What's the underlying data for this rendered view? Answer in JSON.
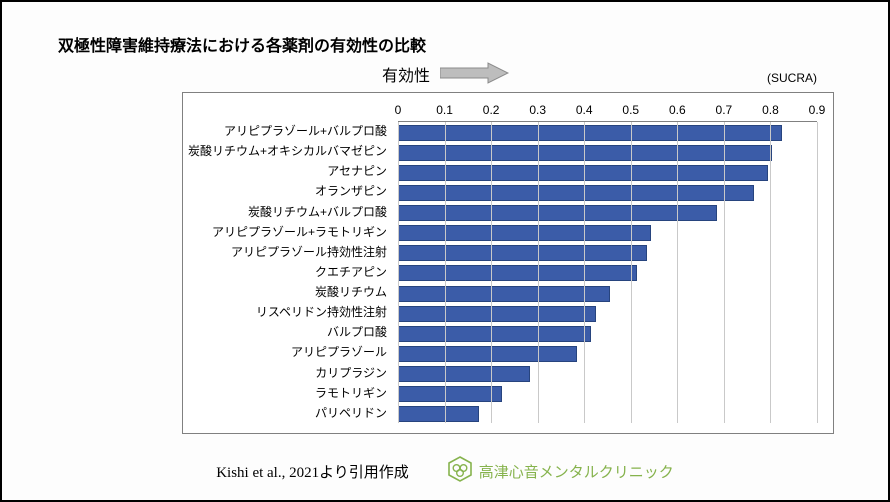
{
  "title": "双極性障害維持療法における各薬剤の有効性の比較",
  "efficacy_label": "有効性",
  "axis": {
    "sucra_label": "(SUCRA)",
    "xmin": 0,
    "xmax": 0.9,
    "ticks": [
      0,
      0.1,
      0.2,
      0.3,
      0.4,
      0.5,
      0.6,
      0.7,
      0.8,
      0.9
    ],
    "tick_labels": [
      "0",
      "0.1",
      "0.2",
      "0.3",
      "0.4",
      "0.5",
      "0.6",
      "0.7",
      "0.8",
      "0.9"
    ],
    "grid_color": "#c9c9c9",
    "axis_color": "#808080",
    "label_fontsize": 12
  },
  "chart": {
    "type": "bar",
    "orientation": "horizontal",
    "bar_color": "#3b5ca8",
    "bar_border": "#27447e",
    "background": "#ffffff",
    "items": [
      {
        "label": "アリピプラゾール+バルプロ酸",
        "value": 0.82
      },
      {
        "label": "炭酸リチウム+オキシカルバマゼピン",
        "value": 0.8
      },
      {
        "label": "アセナピン",
        "value": 0.79
      },
      {
        "label": "オランザピン",
        "value": 0.76
      },
      {
        "label": "炭酸リチウム+バルプロ酸",
        "value": 0.68
      },
      {
        "label": "アリピプラゾール+ラモトリギン",
        "value": 0.54
      },
      {
        "label": "アリピプラゾール持効性注射",
        "value": 0.53
      },
      {
        "label": "クエチアピン",
        "value": 0.51
      },
      {
        "label": "炭酸リチウム",
        "value": 0.45
      },
      {
        "label": "リスペリドン持効性注射",
        "value": 0.42
      },
      {
        "label": "バルプロ酸",
        "value": 0.41
      },
      {
        "label": "アリピプラゾール",
        "value": 0.38
      },
      {
        "label": "カリプラジン",
        "value": 0.28
      },
      {
        "label": "ラモトリギン",
        "value": 0.22
      },
      {
        "label": "パリペリドン",
        "value": 0.17
      }
    ]
  },
  "arrow": {
    "fill": "#bdbdbd",
    "stroke": "#8a8a8a"
  },
  "footer": {
    "citation": "Kishi et al., 2021より引用作成",
    "clinic_name": "高津心音メンタルクリニック",
    "clinic_color": "#86b34d"
  }
}
